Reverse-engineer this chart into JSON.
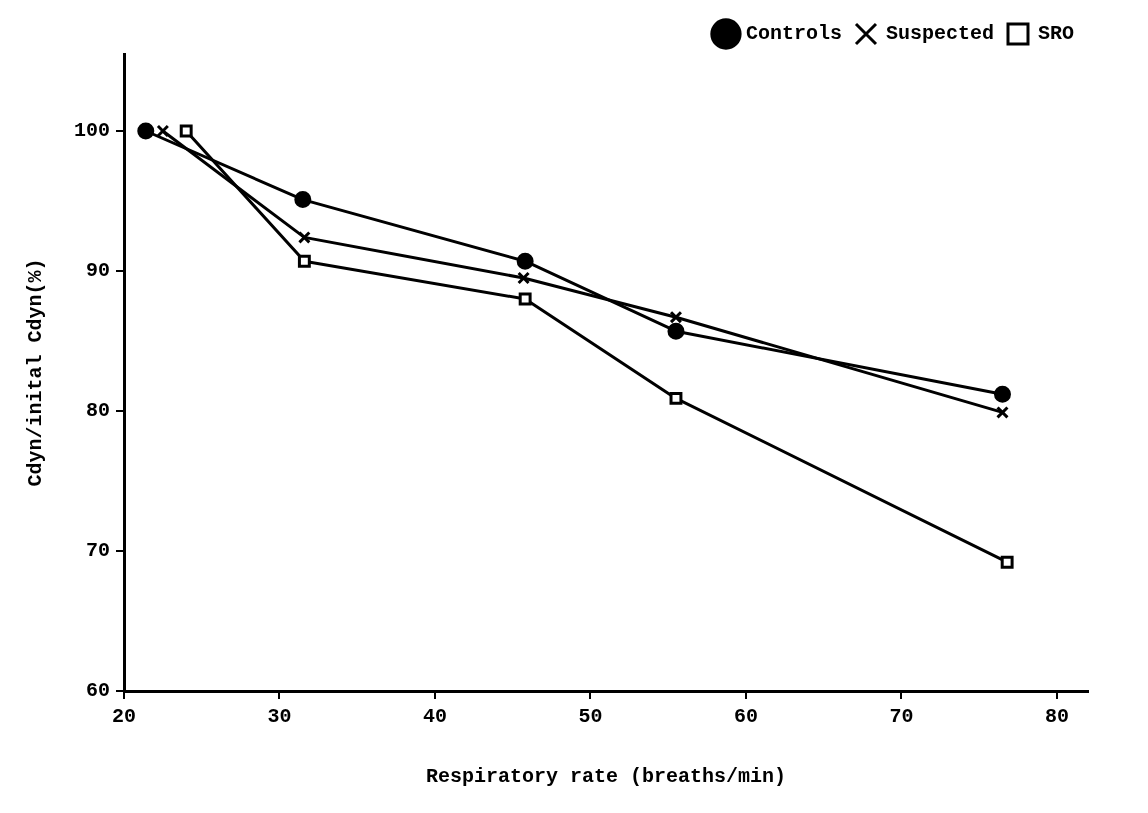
{
  "chart_data": {
    "type": "line",
    "xlabel": "Respiratory rate (breaths/min)",
    "ylabel": "Cdyn/inital Cdyn(%)",
    "xlim": [
      20,
      82
    ],
    "xticks": [
      20,
      30,
      40,
      50,
      60,
      70,
      80
    ],
    "ylim": [
      60,
      105.5
    ],
    "yticks": [
      60,
      70,
      80,
      90,
      100
    ],
    "grid": false,
    "legend": "top right",
    "line_style": "solid",
    "series": [
      {
        "name": "Controls",
        "color": "#000000",
        "marker": "circle",
        "x": [
          21.4,
          31.5,
          45.8,
          55.5,
          76.5
        ],
        "values": [
          100,
          95.1,
          90.7,
          85.7,
          81.2
        ]
      },
      {
        "name": "Suspected",
        "color": "#000000",
        "marker": "cross",
        "x": [
          22.5,
          31.6,
          45.7,
          55.5,
          76.5
        ],
        "values": [
          100,
          92.4,
          89.5,
          86.7,
          79.9
        ]
      },
      {
        "name": "SRO",
        "color": "#000000",
        "marker": "square",
        "x": [
          24,
          31.6,
          45.8,
          55.5,
          76.8
        ],
        "values": [
          100,
          90.7,
          88,
          80.9,
          69.2
        ]
      }
    ]
  }
}
